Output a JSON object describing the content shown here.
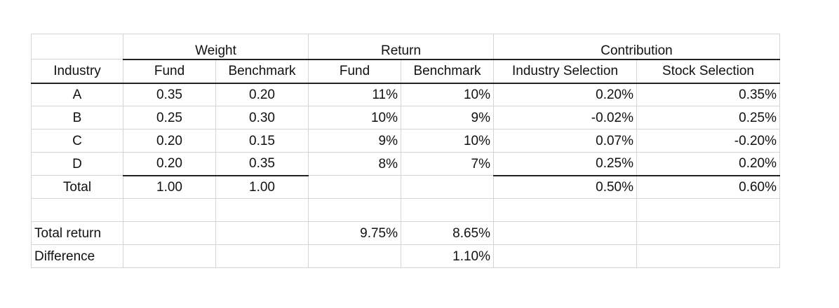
{
  "headers": {
    "weight": "Weight",
    "return": "Return",
    "contribution": "Contribution",
    "industry": "Industry",
    "fund": "Fund",
    "benchmark": "Benchmark",
    "industry_selection": "Industry Selection",
    "stock_selection": "Stock Selection"
  },
  "rows": [
    {
      "industry": "A",
      "w_fund": "0.35",
      "w_bench": "0.20",
      "r_fund": "11%",
      "r_bench": "10%",
      "ind_sel": "0.20%",
      "stock_sel": "0.35%"
    },
    {
      "industry": "B",
      "w_fund": "0.25",
      "w_bench": "0.30",
      "r_fund": "10%",
      "r_bench": "9%",
      "ind_sel": "-0.02%",
      "stock_sel": "0.25%"
    },
    {
      "industry": "C",
      "w_fund": "0.20",
      "w_bench": "0.15",
      "r_fund": "9%",
      "r_bench": "10%",
      "ind_sel": "0.07%",
      "stock_sel": "-0.20%"
    },
    {
      "industry": "D",
      "w_fund": "0.20",
      "w_bench": "0.35",
      "r_fund": "8%",
      "r_bench": "7%",
      "ind_sel": "0.25%",
      "stock_sel": "0.20%"
    }
  ],
  "total": {
    "label": "Total",
    "w_fund": "1.00",
    "w_bench": "1.00",
    "ind_sel": "0.50%",
    "stock_sel": "0.60%"
  },
  "total_return": {
    "label": "Total return",
    "fund": "9.75%",
    "benchmark": "8.65%"
  },
  "difference": {
    "label": "Difference",
    "value": "1.10%"
  }
}
